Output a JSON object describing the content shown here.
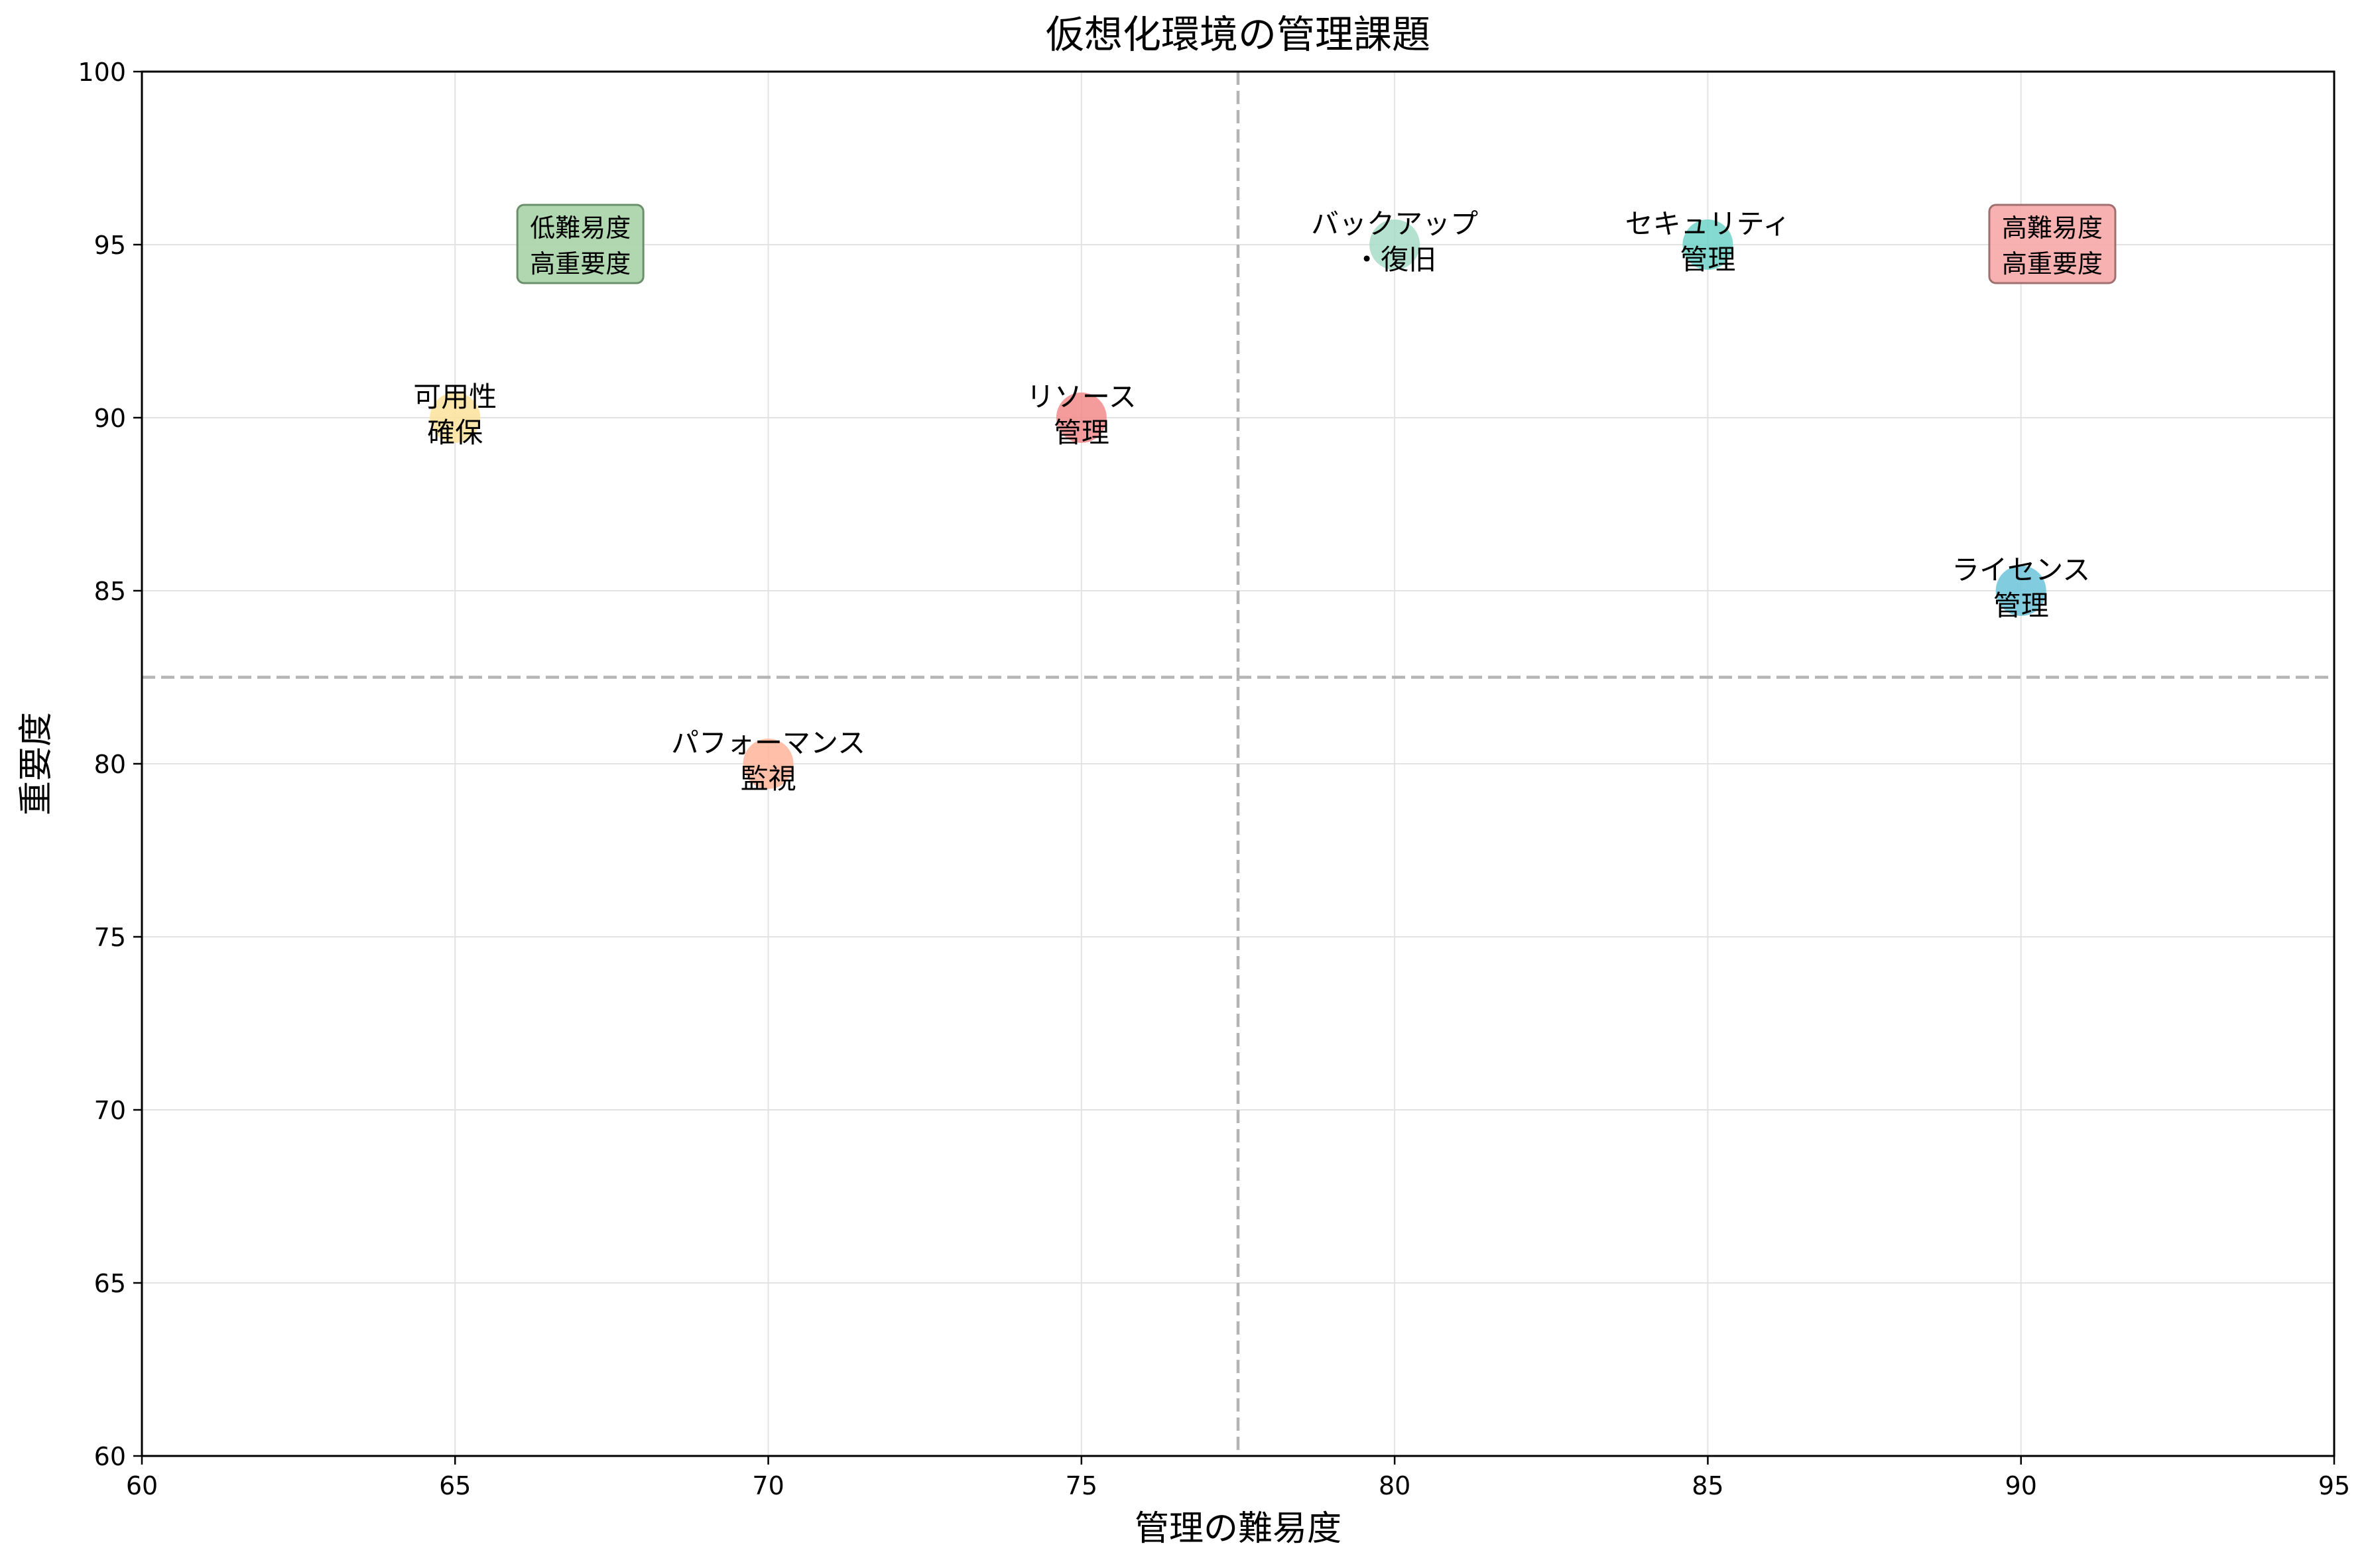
{
  "chart_data": {
    "type": "scatter",
    "title": "仮想化環境の管理課題",
    "xlabel": "管理の難易度",
    "ylabel": "重要度",
    "xlim": [
      60,
      95
    ],
    "ylim": [
      60,
      100
    ],
    "xticks": [
      "60",
      "65",
      "70",
      "75",
      "80",
      "85",
      "90",
      "95"
    ],
    "yticks": [
      "60",
      "65",
      "70",
      "75",
      "80",
      "85",
      "90",
      "95",
      "100"
    ],
    "grid": true,
    "reference_lines": {
      "x": 77.5,
      "y": 82.5
    },
    "points": [
      {
        "label": [
          "リソース",
          "管理"
        ],
        "x": 75,
        "y": 90,
        "color": "#f28b8b"
      },
      {
        "label": [
          "セキュリティ",
          "管理"
        ],
        "x": 85,
        "y": 95,
        "color": "#6fd3c8"
      },
      {
        "label": [
          "ライセンス",
          "管理"
        ],
        "x": 90,
        "y": 85,
        "color": "#6cc3d9"
      },
      {
        "label": [
          "パフォーマンス",
          "監視"
        ],
        "x": 70,
        "y": 80,
        "color": "#ffb49a"
      },
      {
        "label": [
          "バックアップ",
          "・復旧"
        ],
        "x": 80,
        "y": 95,
        "color": "#a8dcc9"
      },
      {
        "label": [
          "可用性",
          "確保"
        ],
        "x": 65,
        "y": 90,
        "color": "#fde29a"
      }
    ],
    "quadrant_labels": [
      {
        "text": [
          "低難易度",
          "高重要度"
        ],
        "x": 67,
        "y": 95,
        "color": "#a9d3a9",
        "border": "#6b8f6b"
      },
      {
        "text": [
          "高難易度",
          "高重要度"
        ],
        "x": 90.5,
        "y": 95,
        "color": "#f7a9a9",
        "border": "#a07070"
      }
    ]
  }
}
